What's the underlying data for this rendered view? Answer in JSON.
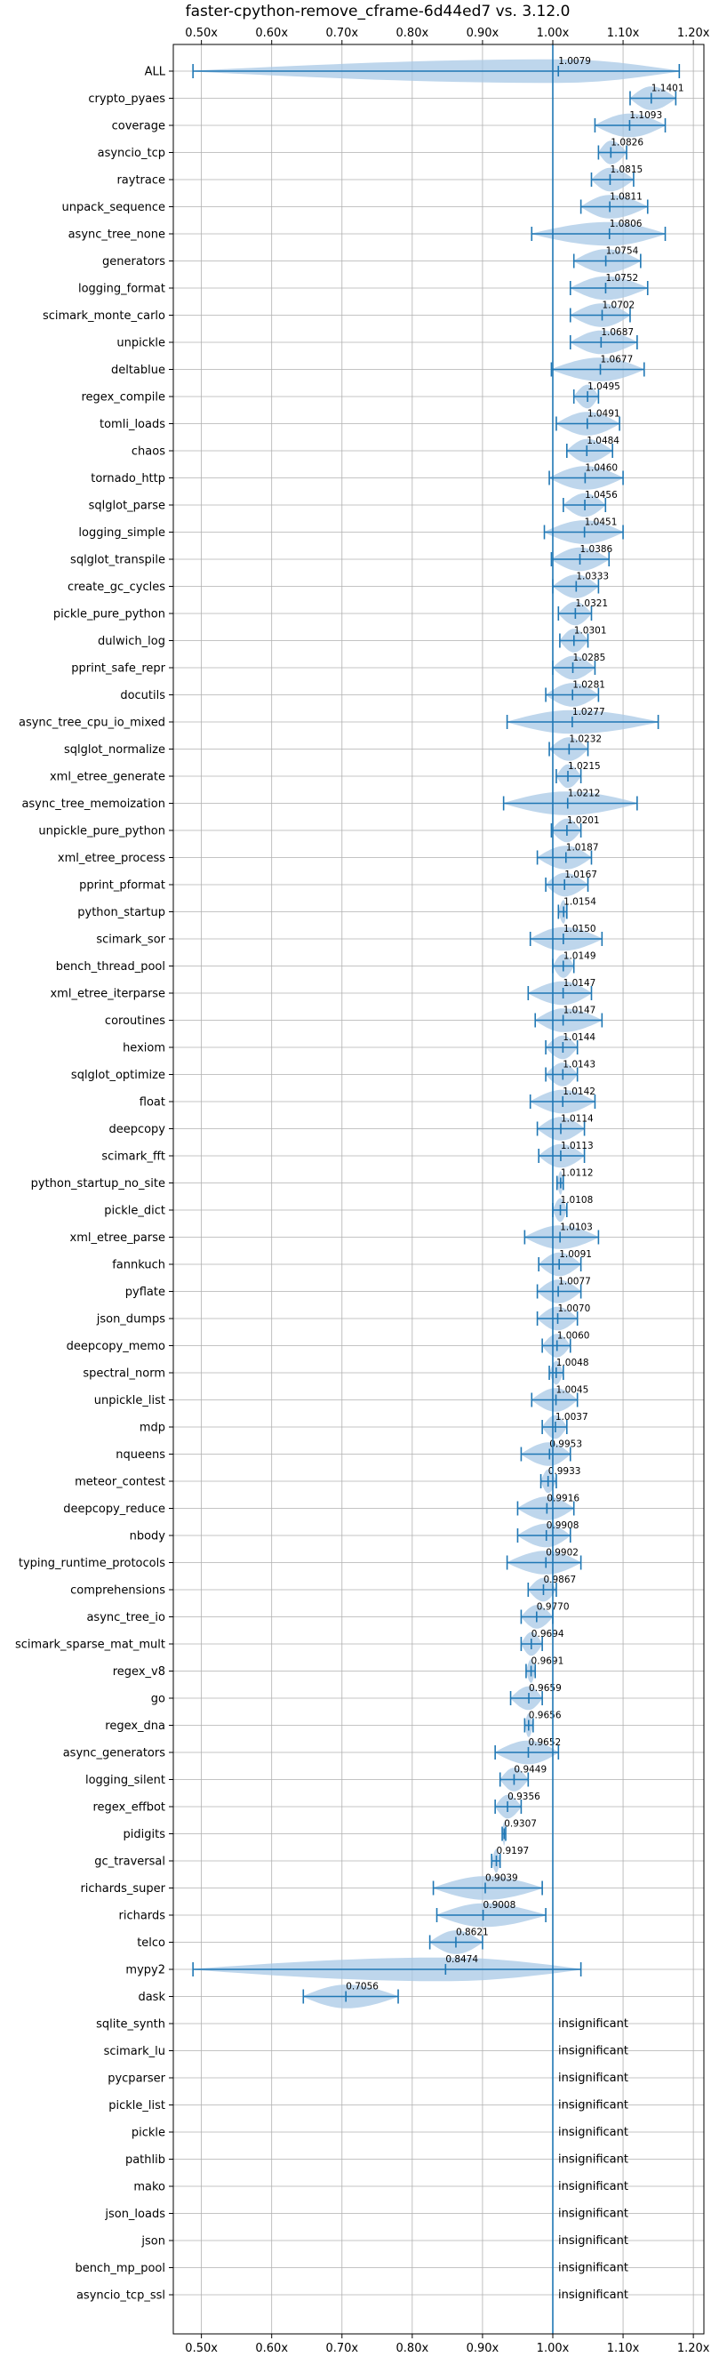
{
  "chart_data": {
    "type": "violin",
    "title": "faster-cpython-remove_cframe-6d44ed7 vs. 3.12.0",
    "xlabel": "",
    "ylabel": "",
    "xlim": [
      0.46,
      1.215
    ],
    "reference_line": 1.0,
    "grid": true,
    "x_ticks": [
      {
        "value": 0.5,
        "label": "0.50x"
      },
      {
        "value": 0.6,
        "label": "0.60x"
      },
      {
        "value": 0.7,
        "label": "0.70x"
      },
      {
        "value": 0.8,
        "label": "0.80x"
      },
      {
        "value": 0.9,
        "label": "0.90x"
      },
      {
        "value": 1.0,
        "label": "1.00x"
      },
      {
        "value": 1.1,
        "label": "1.10x"
      },
      {
        "value": 1.2,
        "label": "1.20x"
      }
    ],
    "insignificant_text": "insignificant",
    "benchmarks": [
      {
        "name": "ALL",
        "label": "1.0079",
        "median": 1.0079,
        "min": 0.488,
        "max": 1.18
      },
      {
        "name": "crypto_pyaes",
        "label": "1.1401",
        "median": 1.1401,
        "min": 1.11,
        "max": 1.175
      },
      {
        "name": "coverage",
        "label": "1.1093",
        "median": 1.1093,
        "min": 1.06,
        "max": 1.16
      },
      {
        "name": "asyncio_tcp",
        "label": "1.0826",
        "median": 1.0826,
        "min": 1.065,
        "max": 1.105
      },
      {
        "name": "raytrace",
        "label": "1.0815",
        "median": 1.0815,
        "min": 1.055,
        "max": 1.115
      },
      {
        "name": "unpack_sequence",
        "label": "1.0811",
        "median": 1.0811,
        "min": 1.04,
        "max": 1.135
      },
      {
        "name": "async_tree_none",
        "label": "1.0806",
        "median": 1.0806,
        "min": 0.97,
        "max": 1.16
      },
      {
        "name": "generators",
        "label": "1.0754",
        "median": 1.0754,
        "min": 1.03,
        "max": 1.125
      },
      {
        "name": "logging_format",
        "label": "1.0752",
        "median": 1.0752,
        "min": 1.025,
        "max": 1.135
      },
      {
        "name": "scimark_monte_carlo",
        "label": "1.0702",
        "median": 1.0702,
        "min": 1.025,
        "max": 1.11
      },
      {
        "name": "unpickle",
        "label": "1.0687",
        "median": 1.0687,
        "min": 1.025,
        "max": 1.12
      },
      {
        "name": "deltablue",
        "label": "1.0677",
        "median": 1.0677,
        "min": 0.998,
        "max": 1.13
      },
      {
        "name": "regex_compile",
        "label": "1.0495",
        "median": 1.0495,
        "min": 1.03,
        "max": 1.065
      },
      {
        "name": "tomli_loads",
        "label": "1.0491",
        "median": 1.0491,
        "min": 1.005,
        "max": 1.095
      },
      {
        "name": "chaos",
        "label": "1.0484",
        "median": 1.0484,
        "min": 1.02,
        "max": 1.085
      },
      {
        "name": "tornado_http",
        "label": "1.0460",
        "median": 1.046,
        "min": 0.995,
        "max": 1.1
      },
      {
        "name": "sqlglot_parse",
        "label": "1.0456",
        "median": 1.0456,
        "min": 1.015,
        "max": 1.075
      },
      {
        "name": "logging_simple",
        "label": "1.0451",
        "median": 1.0451,
        "min": 0.988,
        "max": 1.1
      },
      {
        "name": "sqlglot_transpile",
        "label": "1.0386",
        "median": 1.0386,
        "min": 0.998,
        "max": 1.08
      },
      {
        "name": "create_gc_cycles",
        "label": "1.0333",
        "median": 1.0333,
        "min": 1.0,
        "max": 1.065
      },
      {
        "name": "pickle_pure_python",
        "label": "1.0321",
        "median": 1.0321,
        "min": 1.008,
        "max": 1.055
      },
      {
        "name": "dulwich_log",
        "label": "1.0301",
        "median": 1.0301,
        "min": 1.01,
        "max": 1.05
      },
      {
        "name": "pprint_safe_repr",
        "label": "1.0285",
        "median": 1.0285,
        "min": 1.0,
        "max": 1.06
      },
      {
        "name": "docutils",
        "label": "1.0281",
        "median": 1.0281,
        "min": 0.99,
        "max": 1.065
      },
      {
        "name": "async_tree_cpu_io_mixed",
        "label": "1.0277",
        "median": 1.0277,
        "min": 0.935,
        "max": 1.15
      },
      {
        "name": "sqlglot_normalize",
        "label": "1.0232",
        "median": 1.0232,
        "min": 0.995,
        "max": 1.05
      },
      {
        "name": "xml_etree_generate",
        "label": "1.0215",
        "median": 1.0215,
        "min": 1.005,
        "max": 1.04
      },
      {
        "name": "async_tree_memoization",
        "label": "1.0212",
        "median": 1.0212,
        "min": 0.93,
        "max": 1.12
      },
      {
        "name": "unpickle_pure_python",
        "label": "1.0201",
        "median": 1.0201,
        "min": 0.998,
        "max": 1.04
      },
      {
        "name": "xml_etree_process",
        "label": "1.0187",
        "median": 1.0187,
        "min": 0.978,
        "max": 1.055
      },
      {
        "name": "pprint_pformat",
        "label": "1.0167",
        "median": 1.0167,
        "min": 0.99,
        "max": 1.05
      },
      {
        "name": "python_startup",
        "label": "1.0154",
        "median": 1.0154,
        "min": 1.008,
        "max": 1.02
      },
      {
        "name": "scimark_sor",
        "label": "1.0150",
        "median": 1.015,
        "min": 0.968,
        "max": 1.07
      },
      {
        "name": "bench_thread_pool",
        "label": "1.0149",
        "median": 1.0149,
        "min": 1.0,
        "max": 1.03
      },
      {
        "name": "xml_etree_iterparse",
        "label": "1.0147",
        "median": 1.0147,
        "min": 0.965,
        "max": 1.055
      },
      {
        "name": "coroutines",
        "label": "1.0147",
        "median": 1.0147,
        "min": 0.975,
        "max": 1.07
      },
      {
        "name": "hexiom",
        "label": "1.0144",
        "median": 1.0144,
        "min": 0.99,
        "max": 1.035
      },
      {
        "name": "sqlglot_optimize",
        "label": "1.0143",
        "median": 1.0143,
        "min": 0.99,
        "max": 1.035
      },
      {
        "name": "float",
        "label": "1.0142",
        "median": 1.0142,
        "min": 0.968,
        "max": 1.06
      },
      {
        "name": "deepcopy",
        "label": "1.0114",
        "median": 1.0114,
        "min": 0.978,
        "max": 1.045
      },
      {
        "name": "scimark_fft",
        "label": "1.0113",
        "median": 1.0113,
        "min": 0.98,
        "max": 1.045
      },
      {
        "name": "python_startup_no_site",
        "label": "1.0112",
        "median": 1.0112,
        "min": 1.006,
        "max": 1.015
      },
      {
        "name": "pickle_dict",
        "label": "1.0108",
        "median": 1.0108,
        "min": 1.0,
        "max": 1.02
      },
      {
        "name": "xml_etree_parse",
        "label": "1.0103",
        "median": 1.0103,
        "min": 0.96,
        "max": 1.065
      },
      {
        "name": "fannkuch",
        "label": "1.0091",
        "median": 1.0091,
        "min": 0.98,
        "max": 1.04
      },
      {
        "name": "pyflate",
        "label": "1.0077",
        "median": 1.0077,
        "min": 0.978,
        "max": 1.04
      },
      {
        "name": "json_dumps",
        "label": "1.0070",
        "median": 1.007,
        "min": 0.978,
        "max": 1.035
      },
      {
        "name": "deepcopy_memo",
        "label": "1.0060",
        "median": 1.006,
        "min": 0.985,
        "max": 1.025
      },
      {
        "name": "spectral_norm",
        "label": "1.0048",
        "median": 1.0048,
        "min": 0.995,
        "max": 1.015
      },
      {
        "name": "unpickle_list",
        "label": "1.0045",
        "median": 1.0045,
        "min": 0.97,
        "max": 1.035
      },
      {
        "name": "mdp",
        "label": "1.0037",
        "median": 1.0037,
        "min": 0.985,
        "max": 1.02
      },
      {
        "name": "nqueens",
        "label": "0.9953",
        "median": 0.9953,
        "min": 0.955,
        "max": 1.025
      },
      {
        "name": "meteor_contest",
        "label": "0.9933",
        "median": 0.9933,
        "min": 0.983,
        "max": 1.005
      },
      {
        "name": "deepcopy_reduce",
        "label": "0.9916",
        "median": 0.9916,
        "min": 0.95,
        "max": 1.03
      },
      {
        "name": "nbody",
        "label": "0.9908",
        "median": 0.9908,
        "min": 0.95,
        "max": 1.025
      },
      {
        "name": "typing_runtime_protocols",
        "label": "0.9902",
        "median": 0.9902,
        "min": 0.935,
        "max": 1.04
      },
      {
        "name": "comprehensions",
        "label": "0.9867",
        "median": 0.9867,
        "min": 0.965,
        "max": 1.005
      },
      {
        "name": "async_tree_io",
        "label": "0.9770",
        "median": 0.977,
        "min": 0.955,
        "max": 1.0
      },
      {
        "name": "scimark_sparse_mat_mult",
        "label": "0.9694",
        "median": 0.9694,
        "min": 0.955,
        "max": 0.985
      },
      {
        "name": "regex_v8",
        "label": "0.9691",
        "median": 0.9691,
        "min": 0.962,
        "max": 0.975
      },
      {
        "name": "go",
        "label": "0.9659",
        "median": 0.9659,
        "min": 0.94,
        "max": 0.985
      },
      {
        "name": "regex_dna",
        "label": "0.9656",
        "median": 0.9656,
        "min": 0.96,
        "max": 0.972
      },
      {
        "name": "async_generators",
        "label": "0.9652",
        "median": 0.9652,
        "min": 0.918,
        "max": 1.008
      },
      {
        "name": "logging_silent",
        "label": "0.9449",
        "median": 0.9449,
        "min": 0.925,
        "max": 0.965
      },
      {
        "name": "regex_effbot",
        "label": "0.9356",
        "median": 0.9356,
        "min": 0.918,
        "max": 0.955
      },
      {
        "name": "pidigits",
        "label": "0.9307",
        "median": 0.9307,
        "min": 0.928,
        "max": 0.933
      },
      {
        "name": "gc_traversal",
        "label": "0.9197",
        "median": 0.9197,
        "min": 0.913,
        "max": 0.925
      },
      {
        "name": "richards_super",
        "label": "0.9039",
        "median": 0.9039,
        "min": 0.83,
        "max": 0.985
      },
      {
        "name": "richards",
        "label": "0.9008",
        "median": 0.9008,
        "min": 0.835,
        "max": 0.99
      },
      {
        "name": "telco",
        "label": "0.8621",
        "median": 0.8621,
        "min": 0.825,
        "max": 0.9
      },
      {
        "name": "mypy2",
        "label": "0.8474",
        "median": 0.8474,
        "min": 0.488,
        "max": 1.04
      },
      {
        "name": "dask",
        "label": "0.7056",
        "median": 0.7056,
        "min": 0.645,
        "max": 0.78
      },
      {
        "name": "sqlite_synth",
        "label": "",
        "insignificant": true
      },
      {
        "name": "scimark_lu",
        "label": "",
        "insignificant": true
      },
      {
        "name": "pycparser",
        "label": "",
        "insignificant": true
      },
      {
        "name": "pickle_list",
        "label": "",
        "insignificant": true
      },
      {
        "name": "pickle",
        "label": "",
        "insignificant": true
      },
      {
        "name": "pathlib",
        "label": "",
        "insignificant": true
      },
      {
        "name": "mako",
        "label": "",
        "insignificant": true
      },
      {
        "name": "json_loads",
        "label": "",
        "insignificant": true
      },
      {
        "name": "json",
        "label": "",
        "insignificant": true
      },
      {
        "name": "bench_mp_pool",
        "label": "",
        "insignificant": true
      },
      {
        "name": "asyncio_tcp_ssl",
        "label": "",
        "insignificant": true
      }
    ],
    "colors": {
      "violin": "#a8c8e6",
      "line": "#1f77b4",
      "grid": "#b0b0b0",
      "axis": "#000000"
    }
  }
}
